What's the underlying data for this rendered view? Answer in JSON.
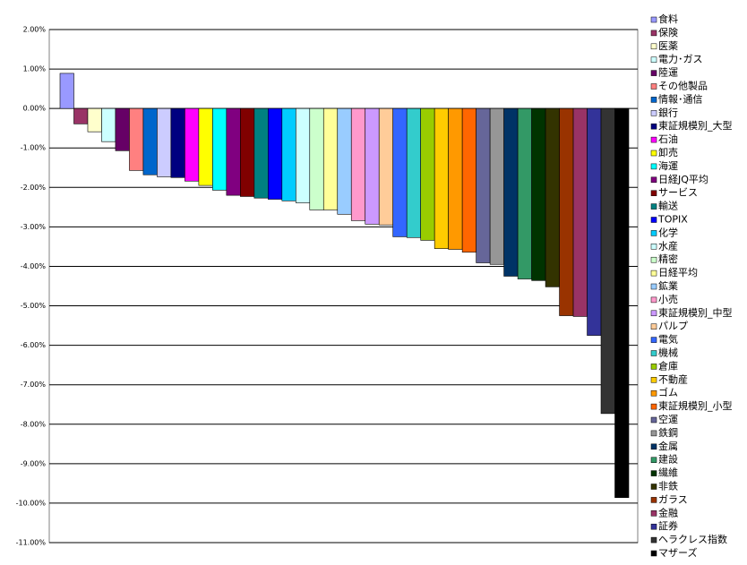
{
  "chart_data": {
    "type": "bar",
    "categories": [
      "食料",
      "保険",
      "医薬",
      "電力･ガス",
      "陸運",
      "その他製品",
      "情報･通信",
      "銀行",
      "東証規模別_大型",
      "石油",
      "卸売",
      "海運",
      "日経JQ平均",
      "サービス",
      "輸送",
      "TOPIX",
      "化学",
      "水産",
      "精密",
      "日経平均",
      "鉱業",
      "小売",
      "東証規模別_中型",
      "パルプ",
      "電気",
      "機械",
      "倉庫",
      "不動産",
      "ゴム",
      "東証規模別_小型",
      "空運",
      "鉄鋼",
      "金属",
      "建設",
      "繊維",
      "非鉄",
      "ガラス",
      "金融",
      "証券",
      "ヘラクレス指数",
      "マザーズ"
    ],
    "values": [
      0.89,
      -0.39,
      -0.59,
      -0.84,
      -1.07,
      -1.57,
      -1.68,
      -1.73,
      -1.75,
      -1.84,
      -1.95,
      -2.07,
      -2.2,
      -2.23,
      -2.27,
      -2.3,
      -2.34,
      -2.39,
      -2.57,
      -2.57,
      -2.68,
      -2.84,
      -2.93,
      -2.95,
      -3.25,
      -3.27,
      -3.34,
      -3.55,
      -3.57,
      -3.64,
      -3.91,
      -3.95,
      -4.25,
      -4.32,
      -4.36,
      -4.52,
      -5.25,
      -5.27,
      -5.75,
      -7.73,
      -9.86
    ],
    "colors": [
      "#9999FF",
      "#993366",
      "#FFFFCC",
      "#CCFFFF",
      "#660066",
      "#FF8080",
      "#0066CC",
      "#CCCCFF",
      "#000080",
      "#FF00FF",
      "#FFFF00",
      "#00FFFF",
      "#800080",
      "#800000",
      "#008080",
      "#0000FF",
      "#00CCFF",
      "#CCFFFF",
      "#CCFFCC",
      "#FFFF99",
      "#99CCFF",
      "#FF99CC",
      "#CC99FF",
      "#FFCC99",
      "#3366FF",
      "#33CCCC",
      "#99CC00",
      "#FFCC00",
      "#FF9900",
      "#FF6600",
      "#666699",
      "#969696",
      "#003366",
      "#339966",
      "#003300",
      "#333300",
      "#993300",
      "#993366",
      "#333399",
      "#333333",
      "#000000"
    ],
    "ylim": [
      -11,
      2
    ],
    "yticks": [
      {
        "value": 2,
        "label": "2.00%"
      },
      {
        "value": 1,
        "label": "1.00%"
      },
      {
        "value": 0,
        "label": "0.00%"
      },
      {
        "value": -1,
        "label": "-1.00%"
      },
      {
        "value": -2,
        "label": "-2.00%"
      },
      {
        "value": -3,
        "label": "-3.00%"
      },
      {
        "value": -4,
        "label": "-4.00%"
      },
      {
        "value": -5,
        "label": "-5.00%"
      },
      {
        "value": -6,
        "label": "-6.00%"
      },
      {
        "value": -7,
        "label": "-7.00%"
      },
      {
        "value": -8,
        "label": "-8.00%"
      },
      {
        "value": -9,
        "label": "-9.00%"
      },
      {
        "value": -10,
        "label": "-10.00%"
      },
      {
        "value": -11,
        "label": "-11.00%"
      }
    ],
    "grid": true
  }
}
